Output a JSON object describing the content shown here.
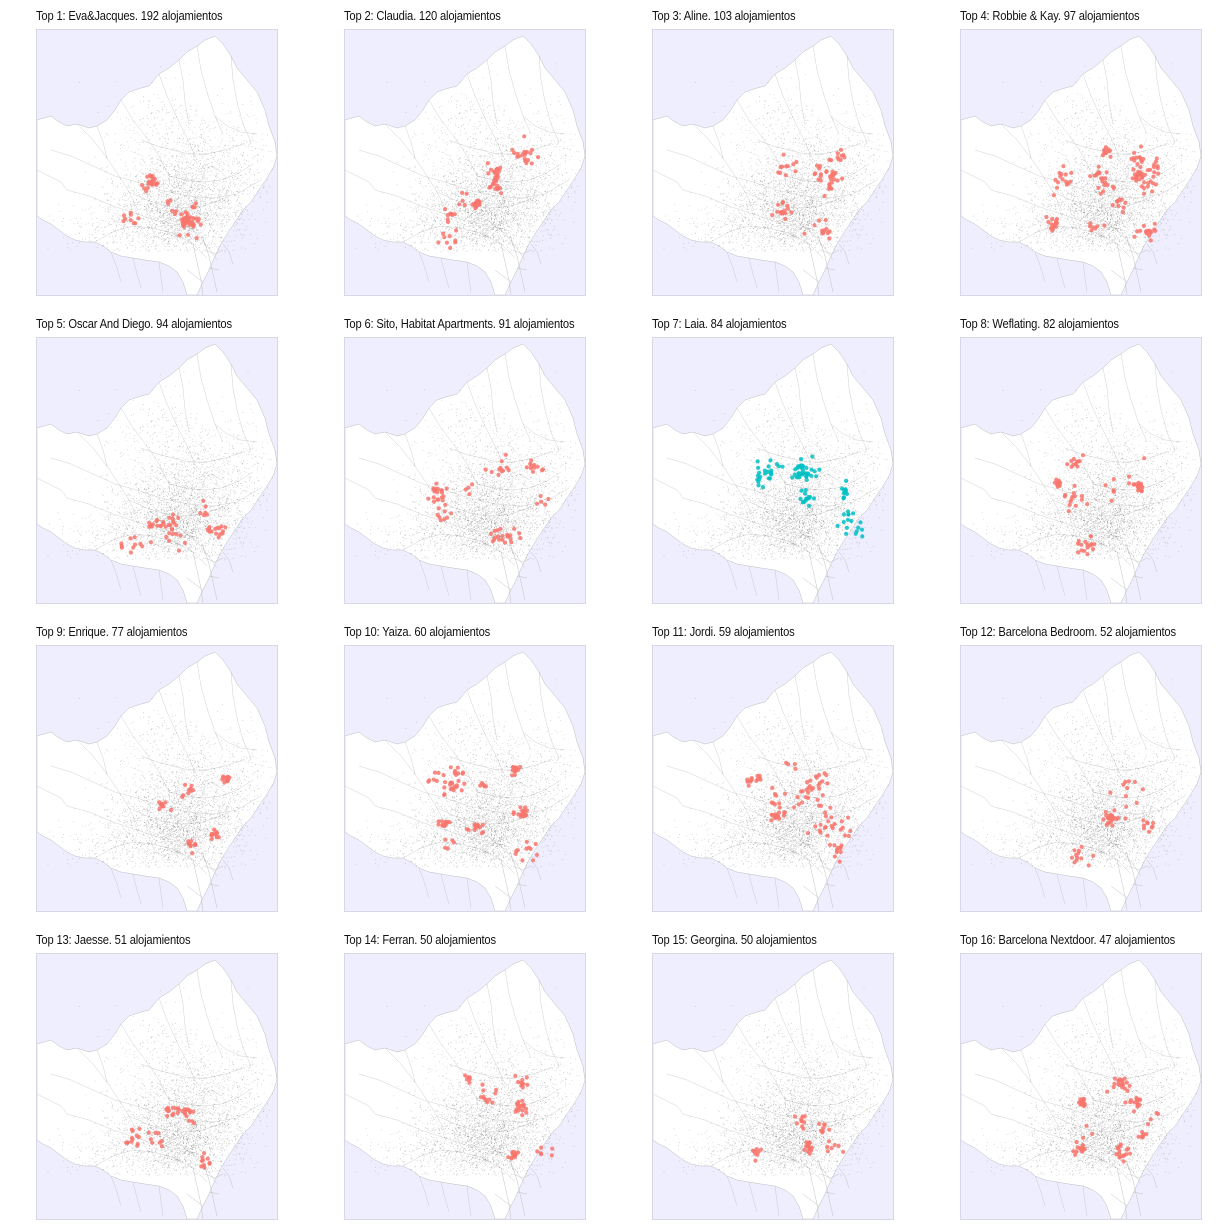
{
  "colors": {
    "sea": "#eeeeff",
    "land": "#ffffff",
    "boundary": "#bcbcbc",
    "all_listings": "#000000",
    "host_listings": "#f8766d",
    "host_listings_alt": "#00bfc4",
    "frame": "#d7d7e6"
  },
  "panels": [
    {
      "title": "Top 1: Eva&Jacques. 192 alojamientos",
      "color": "#f8766d",
      "seed": 11
    },
    {
      "title": "Top 2: Claudia. 120 alojamientos",
      "color": "#f8766d",
      "seed": 23
    },
    {
      "title": "Top 3: Aline. 103 alojamientos",
      "color": "#f8766d",
      "seed": 37
    },
    {
      "title": "Top 4: Robbie & Kay. 97 alojamientos",
      "color": "#f8766d",
      "seed": 41
    },
    {
      "title": "Top 5: Oscar And Diego. 94 alojamientos",
      "color": "#f8766d",
      "seed": 53
    },
    {
      "title": "Top 6: Sito, Habitat Apartments. 91 alojamientos",
      "color": "#f8766d",
      "seed": 67
    },
    {
      "title": "Top 7: Laia. 84 alojamientos",
      "color": "#00bfc4",
      "seed": 71
    },
    {
      "title": "Top 8: Weflating. 82 alojamientos",
      "color": "#f8766d",
      "seed": 83
    },
    {
      "title": "Top 9: Enrique. 77 alojamientos",
      "color": "#f8766d",
      "seed": 97
    },
    {
      "title": "Top 10: Yaiza. 60 alojamientos",
      "color": "#f8766d",
      "seed": 101
    },
    {
      "title": "Top 11: Jordi. 59 alojamientos",
      "color": "#f8766d",
      "seed": 113
    },
    {
      "title": "Top 12: Barcelona Bedroom. 52 alojamientos",
      "color": "#f8766d",
      "seed": 127
    },
    {
      "title": "Top 13: Jaesse. 51 alojamientos",
      "color": "#f8766d",
      "seed": 131
    },
    {
      "title": "Top 14: Ferran. 50 alojamientos",
      "color": "#f8766d",
      "seed": 149
    },
    {
      "title": "Top 15: Georgina. 50 alojamientos",
      "color": "#f8766d",
      "seed": 151
    },
    {
      "title": "Top 16: Barcelona Nextdoor. 47 alojamientos",
      "color": "#f8766d",
      "seed": 163
    }
  ]
}
